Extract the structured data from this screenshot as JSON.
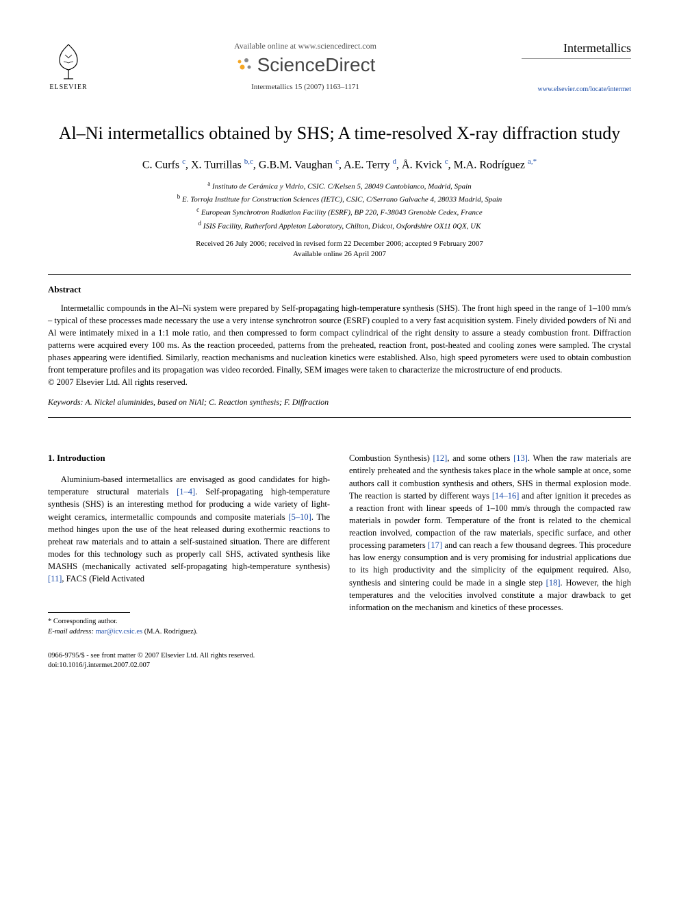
{
  "header": {
    "elsevier_label": "ELSEVIER",
    "available_text": "Available online at www.sciencedirect.com",
    "sd_text": "ScienceDirect",
    "journal_ref": "Intermetallics 15 (2007) 1163–1171",
    "journal_name": "Intermetallics",
    "journal_url": "www.elsevier.com/locate/intermet"
  },
  "title": "Al–Ni intermetallics obtained by SHS; A time-resolved X-ray diffraction study",
  "authors_html": "C. Curfs <sup>c</sup>, X. Turrillas <sup>b,c</sup>, G.B.M. Vaughan <sup>c</sup>, A.E. Terry <sup>d</sup>, Å. Kvick <sup>c</sup>, M.A. Rodríguez <sup>a,*</sup>",
  "affiliations": {
    "a": "Instituto de Cerámica y Vidrio, CSIC. C/Kelsen 5, 28049 Cantoblanco, Madrid, Spain",
    "b": "E. Torroja Institute for Construction Sciences (IETC), CSIC, C/Serrano Galvache 4, 28033 Madrid, Spain",
    "c": "European Synchrotron Radiation Facility (ESRF), BP 220, F-38043 Grenoble Cedex, France",
    "d": "ISIS Facility, Rutherford Appleton Laboratory, Chilton, Didcot, Oxfordshire OX11 0QX, UK"
  },
  "dates": {
    "received": "Received 26 July 2006; received in revised form 22 December 2006; accepted 9 February 2007",
    "online": "Available online 26 April 2007"
  },
  "abstract": {
    "heading": "Abstract",
    "body": "Intermetallic compounds in the Al–Ni system were prepared by Self-propagating high-temperature synthesis (SHS). The front high speed in the range of 1–100 mm/s – typical of these processes made necessary the use a very intense synchrotron source (ESRF) coupled to a very fast acquisition system. Finely divided powders of Ni and Al were intimately mixed in a 1:1 mole ratio, and then compressed to form compact cylindrical of the right density to assure a steady combustion front. Diffraction patterns were acquired every 100 ms. As the reaction proceeded, patterns from the preheated, reaction front, post-heated and cooling zones were sampled. The crystal phases appearing were identified. Similarly, reaction mechanisms and nucleation kinetics were established. Also, high speed pyrometers were used to obtain combustion front temperature profiles and its propagation was video recorded. Finally, SEM images were taken to characterize the microstructure of end products.",
    "copyright": "© 2007 Elsevier Ltd. All rights reserved."
  },
  "keywords": {
    "label": "Keywords:",
    "text": "A. Nickel aluminides, based on NiAl; C. Reaction synthesis; F. Diffraction"
  },
  "section1": {
    "heading": "1. Introduction",
    "col1_pre": "Aluminium-based intermetallics are envisaged as good candidates for high-temperature structural materials ",
    "ref1": "[1–4]",
    "col1_mid1": ". Self-propagating high-temperature synthesis (SHS) is an interesting method for producing a wide variety of light-weight ceramics, intermetallic compounds and composite materials ",
    "ref2": "[5–10]",
    "col1_mid2": ". The method hinges upon the use of the heat released during exothermic reactions to preheat raw materials and to attain a self-sustained situation. There are different modes for this technology such as properly call SHS, activated synthesis like MASHS (mechanically activated self-propagating high-temperature synthesis) ",
    "ref3": "[11]",
    "col1_end": ", FACS (Field Activated",
    "col2_pre": "Combustion Synthesis) ",
    "ref4": "[12]",
    "col2_mid1": ", and some others ",
    "ref5": "[13]",
    "col2_mid2": ". When the raw materials are entirely preheated and the synthesis takes place in the whole sample at once, some authors call it combustion synthesis and others, SHS in thermal explosion mode. The reaction is started by different ways ",
    "ref6": "[14–16]",
    "col2_mid3": " and after ignition it precedes as a reaction front with linear speeds of 1–100 mm/s through the compacted raw materials in powder form. Temperature of the front is related to the chemical reaction involved, compaction of the raw materials, specific surface, and other processing parameters ",
    "ref7": "[17]",
    "col2_mid4": " and can reach a few thousand degrees. This procedure has low energy consumption and is very promising for industrial applications due to its high productivity and the simplicity of the equipment required. Also, synthesis and sintering could be made in a single step ",
    "ref8": "[18]",
    "col2_end": ". However, the high temperatures and the velocities involved constitute a major drawback to get information on the mechanism and kinetics of these processes."
  },
  "footnote": {
    "corr": "* Corresponding author.",
    "email_label": "E-mail address:",
    "email": "mar@icv.csic.es",
    "email_suffix": "(M.A. Rodríguez)."
  },
  "bottom": {
    "issn": "0966-9795/$ - see front matter © 2007 Elsevier Ltd. All rights reserved.",
    "doi": "doi:10.1016/j.intermet.2007.02.007"
  },
  "colors": {
    "link": "#1a4ba8",
    "text": "#000000",
    "sd_orange": "#f5a623",
    "sd_gray": "#444444"
  }
}
